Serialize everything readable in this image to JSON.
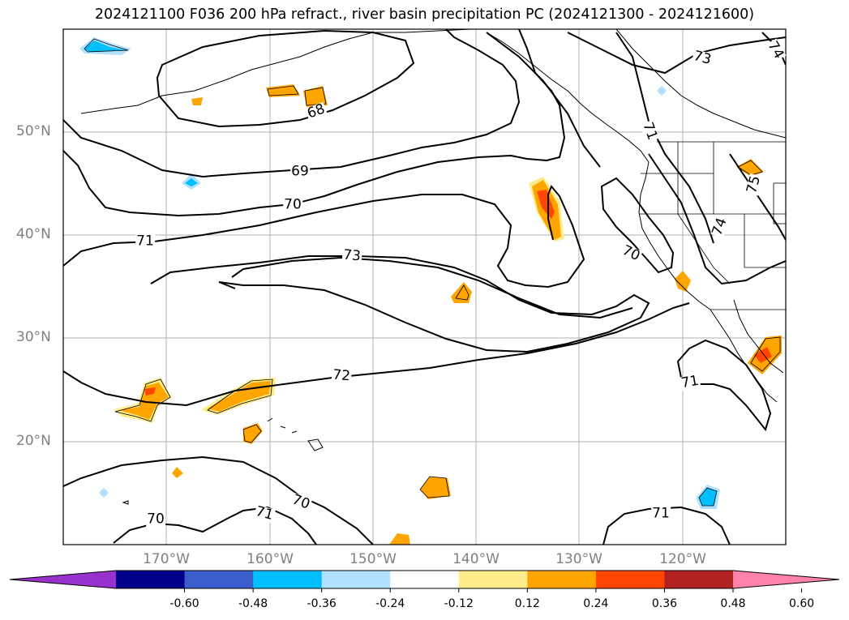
{
  "title": "2024121100 F036 200 hPa refract., river basin precipitation PC (2024121300 - 2024121600)",
  "map": {
    "projection": "lat-lon",
    "lon_range": [
      -180,
      -110
    ],
    "lat_range": [
      10,
      60
    ],
    "gridlines": true,
    "lat_ticks": [
      "50°N",
      "40°N",
      "30°N",
      "20°N"
    ],
    "lon_ticks": [
      "170°W",
      "160°W",
      "150°W",
      "140°W",
      "130°W",
      "120°W"
    ],
    "contour_field": "200 hPa refractivity",
    "contour_labels": [
      "68",
      "69",
      "70",
      "71",
      "73",
      "72",
      "70",
      "71",
      "70",
      "71",
      "73",
      "74",
      "74",
      "75",
      "70",
      "71",
      "71"
    ],
    "fill_field": "river basin precipitation PC"
  },
  "colorbar": {
    "ticks": [
      "-0.60",
      "-0.48",
      "-0.36",
      "-0.24",
      "-0.12",
      "0.12",
      "0.24",
      "0.36",
      "0.48",
      "0.60"
    ],
    "colors": [
      "#9932cc",
      "#00008b",
      "#3a5fcd",
      "#00bfff",
      "#b0e2ff",
      "#ffffff",
      "#ffec8b",
      "#ffa500",
      "#ff4500",
      "#b22222",
      "#ff82ab"
    ],
    "extend": "both"
  }
}
